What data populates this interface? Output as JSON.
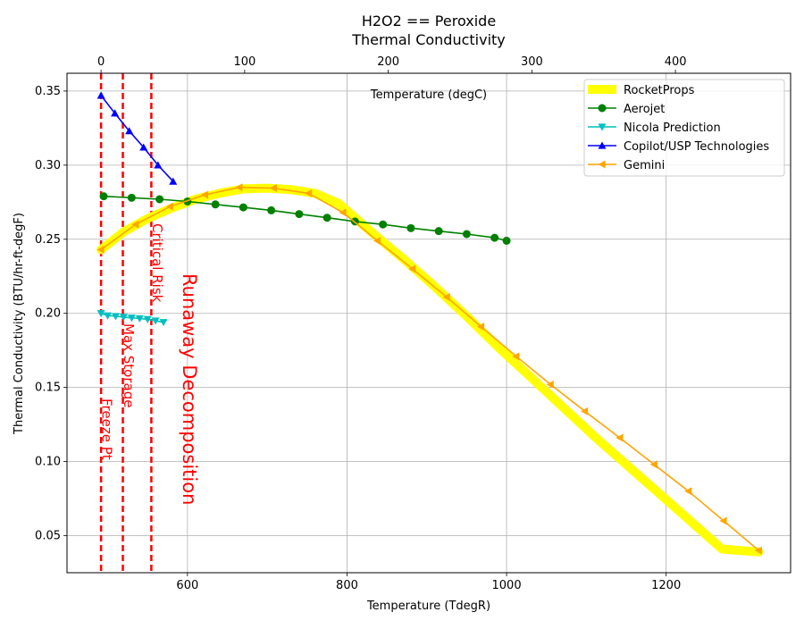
{
  "chart_data": {
    "type": "line",
    "title": "H2O2 == Peroxide",
    "subtitle": "Thermal Conductivity",
    "xlabel": "Temperature (TdegR)",
    "ylabel": "Thermal Conductivity (BTU/hr-ft-degF)",
    "x2label": "Temperature (degC)",
    "xlim": [
      449,
      1356
    ],
    "ylim": [
      0.025,
      0.362
    ],
    "xticks": [
      600,
      800,
      1000,
      1200
    ],
    "yticks": [
      0.05,
      0.1,
      0.15,
      0.2,
      0.25,
      0.3,
      0.35
    ],
    "yticklabels": [
      "0.05",
      "0.10",
      "0.15",
      "0.20",
      "0.25",
      "0.30",
      "0.35"
    ],
    "x2ticks": [
      0,
      100,
      200,
      300,
      400
    ],
    "grid": true,
    "legend_position": "top-right",
    "vlines": [
      {
        "x": 491.7,
        "label": "Freeze Pt",
        "size": "medium"
      },
      {
        "x": 519.0,
        "label": "Max Storage",
        "size": "medium"
      },
      {
        "x": 554.7,
        "label": "Critical Risk",
        "size": "medium"
      },
      {
        "x": 600.0,
        "label": "Runaway Decomposition",
        "size": "large",
        "line": false
      }
    ],
    "series": [
      {
        "name": "RocketProps",
        "color": "#ffff00",
        "marker": "none",
        "thick": true,
        "x": [
          491.7,
          520,
          550,
          580,
          610,
          640,
          670,
          700,
          730,
          760,
          790,
          830,
          870,
          910,
          950,
          990,
          1030,
          1070,
          1110,
          1150,
          1190,
          1230,
          1270,
          1316
        ],
        "y": [
          0.243,
          0.255,
          0.264,
          0.271,
          0.277,
          0.281,
          0.284,
          0.2845,
          0.2835,
          0.281,
          0.274,
          0.255,
          0.237,
          0.218,
          0.198,
          0.177,
          0.157,
          0.137,
          0.117,
          0.098,
          0.079,
          0.06,
          0.041,
          0.039
        ]
      },
      {
        "name": "Aerojet",
        "color": "#008000",
        "marker": "circle",
        "x": [
          495,
          530,
          565,
          600,
          635,
          670,
          705,
          740,
          775,
          810,
          845,
          880,
          915,
          950,
          985,
          1000
        ],
        "y": [
          0.279,
          0.278,
          0.277,
          0.2755,
          0.2735,
          0.2715,
          0.2695,
          0.267,
          0.2645,
          0.262,
          0.26,
          0.2575,
          0.2555,
          0.2535,
          0.251,
          0.249
        ]
      },
      {
        "name": "Nicola Prediction",
        "color": "#00bfbf",
        "marker": "triangle-down",
        "x": [
          491.7,
          500,
          510,
          520,
          530,
          540,
          550,
          560,
          570
        ],
        "y": [
          0.2,
          0.1985,
          0.198,
          0.1975,
          0.197,
          0.1965,
          0.196,
          0.195,
          0.194
        ]
      },
      {
        "name": "Copilot/USP Technologies",
        "color": "#0000ff",
        "marker": "triangle-up",
        "x": [
          491.7,
          509,
          527,
          545,
          563,
          582
        ],
        "y": [
          0.347,
          0.335,
          0.323,
          0.312,
          0.3,
          0.289
        ]
      },
      {
        "name": "Gemini",
        "color": "#ffa500",
        "marker": "triangle-left",
        "x": [
          491.7,
          535,
          578,
          622,
          665,
          708,
          752,
          795,
          838,
          882,
          925,
          968,
          1012,
          1055,
          1098,
          1142,
          1185,
          1228,
          1272,
          1316
        ],
        "y": [
          0.243,
          0.26,
          0.272,
          0.28,
          0.285,
          0.2845,
          0.281,
          0.268,
          0.249,
          0.23,
          0.211,
          0.191,
          0.171,
          0.152,
          0.134,
          0.116,
          0.098,
          0.08,
          0.06,
          0.04
        ]
      }
    ]
  }
}
